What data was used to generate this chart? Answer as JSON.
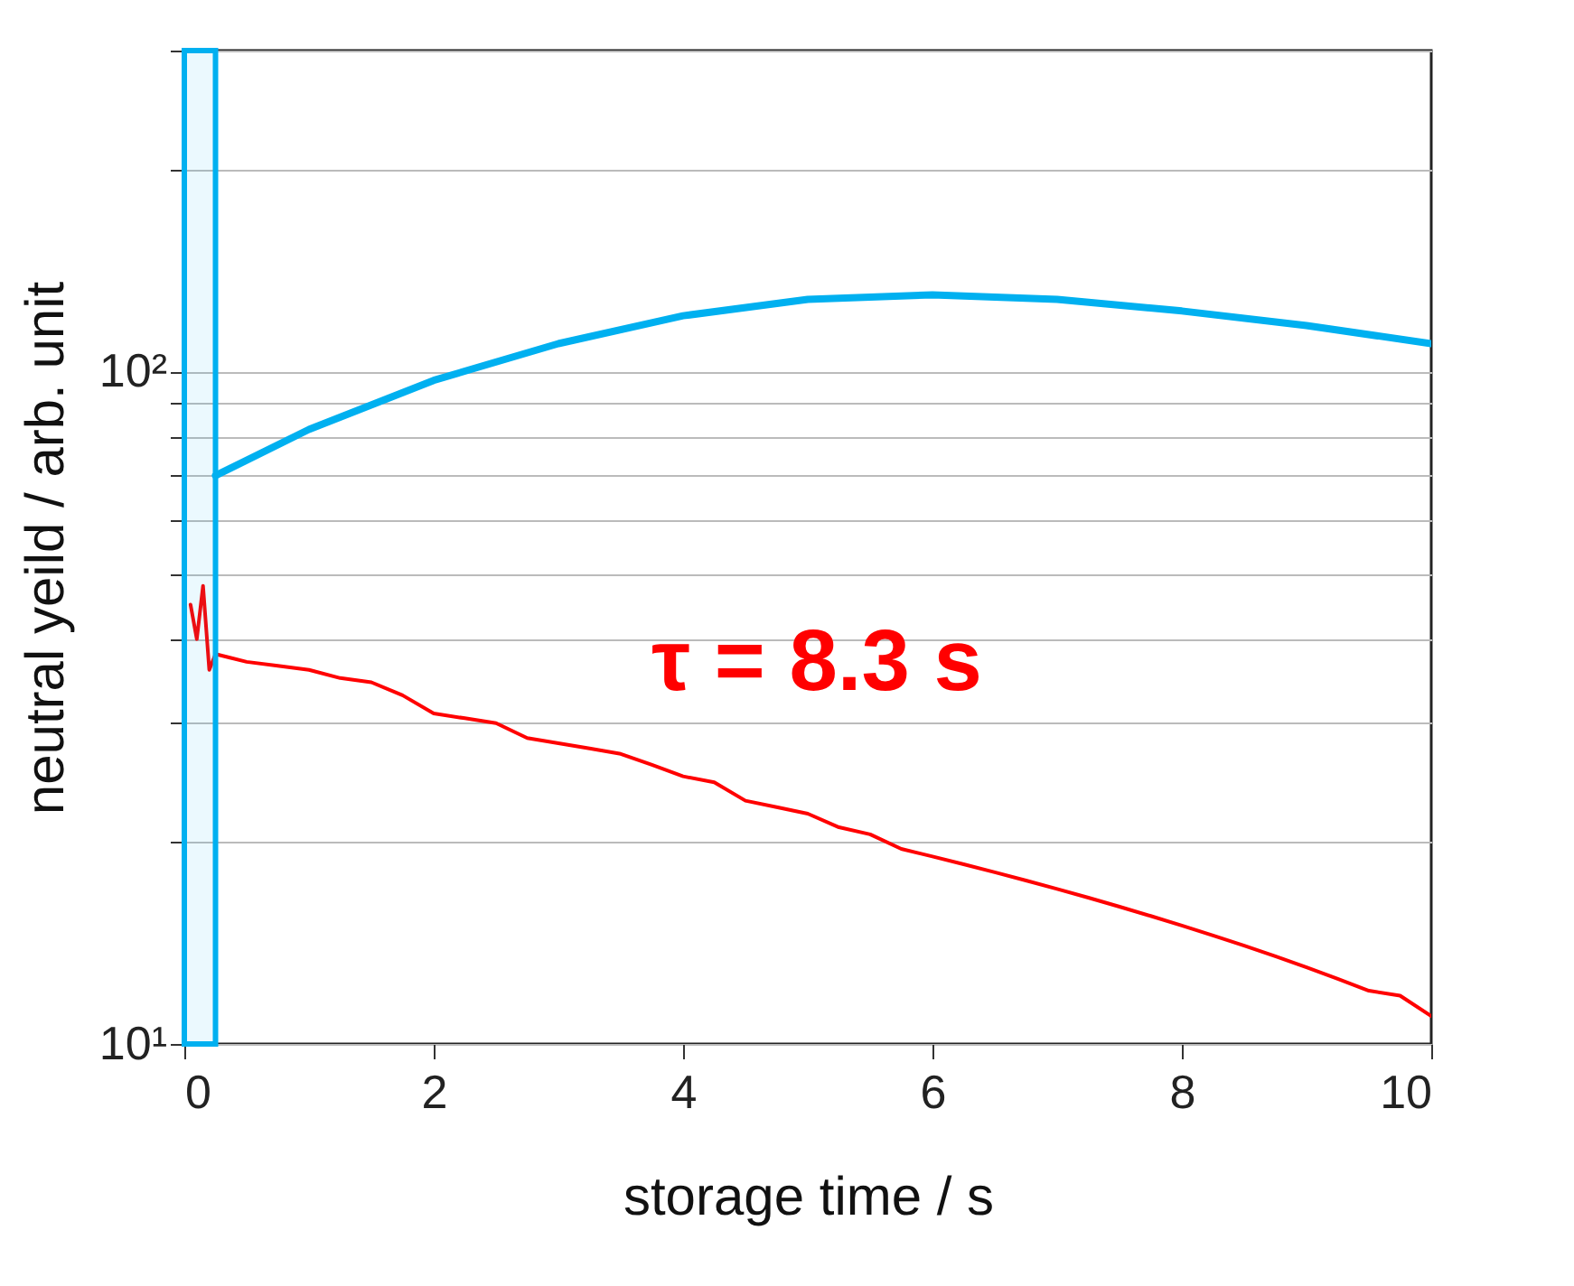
{
  "chart_data": {
    "type": "line",
    "xlabel": "storage time / s",
    "ylabel": "neutral yeild / arb. unit",
    "xlim": [
      0,
      10
    ],
    "xticks": [
      0,
      2,
      4,
      6,
      8,
      10
    ],
    "ylim": [
      10,
      300
    ],
    "log": true,
    "yticks": [
      {
        "value": 10,
        "label": "10¹"
      },
      {
        "value": 20,
        "label": null
      },
      {
        "value": 30,
        "label": null
      },
      {
        "value": 40,
        "label": null
      },
      {
        "value": 50,
        "label": null
      },
      {
        "value": 60,
        "label": null
      },
      {
        "value": 70,
        "label": null
      },
      {
        "value": 80,
        "label": null
      },
      {
        "value": 90,
        "label": null
      },
      {
        "value": 100,
        "label": "10²"
      },
      {
        "value": 200,
        "label": null
      },
      {
        "value": 300,
        "label": null
      }
    ],
    "grid": "y",
    "series": [
      {
        "color": "#ff0000",
        "x": [
          0.05,
          0.1,
          0.15,
          0.2,
          0.25,
          0.5,
          0.75,
          1,
          1.25,
          1.5,
          1.75,
          2,
          2.25,
          2.5,
          2.75,
          3,
          3.25,
          3.5,
          3.75,
          4,
          4.25,
          4.5,
          4.75,
          5,
          5.25,
          5.5,
          5.75,
          6,
          6.25,
          6.5,
          6.75,
          7,
          7.25,
          7.5,
          7.75,
          8,
          8.25,
          8.5,
          8.75,
          9,
          9.25,
          9.5,
          9.75,
          10
        ],
        "values": [
          45,
          40,
          48,
          36,
          38,
          37,
          36.5,
          36,
          35,
          34.5,
          33,
          31,
          30.5,
          30,
          28.5,
          28,
          27.5,
          27,
          26,
          25,
          24.5,
          23,
          22.5,
          22,
          21,
          20.5,
          19.5,
          19,
          18.5,
          18,
          17.5,
          17,
          16.5,
          16,
          15.5,
          15,
          14.5,
          14,
          13.5,
          13,
          12.5,
          12,
          11.8,
          11
        ]
      },
      {
        "color": "#00b0f0",
        "x": [
          0.25,
          1,
          2,
          3,
          4,
          5,
          6,
          7,
          8,
          9,
          10
        ],
        "values": [
          70,
          82,
          97,
          110,
          121,
          128,
          130,
          128,
          123,
          117,
          110
        ]
      }
    ],
    "bands": [
      {
        "axis": "x",
        "from": 0,
        "to": 0.25,
        "color": "#00b0f0"
      }
    ],
    "annotations": [
      "τ = 8.3 s"
    ]
  }
}
